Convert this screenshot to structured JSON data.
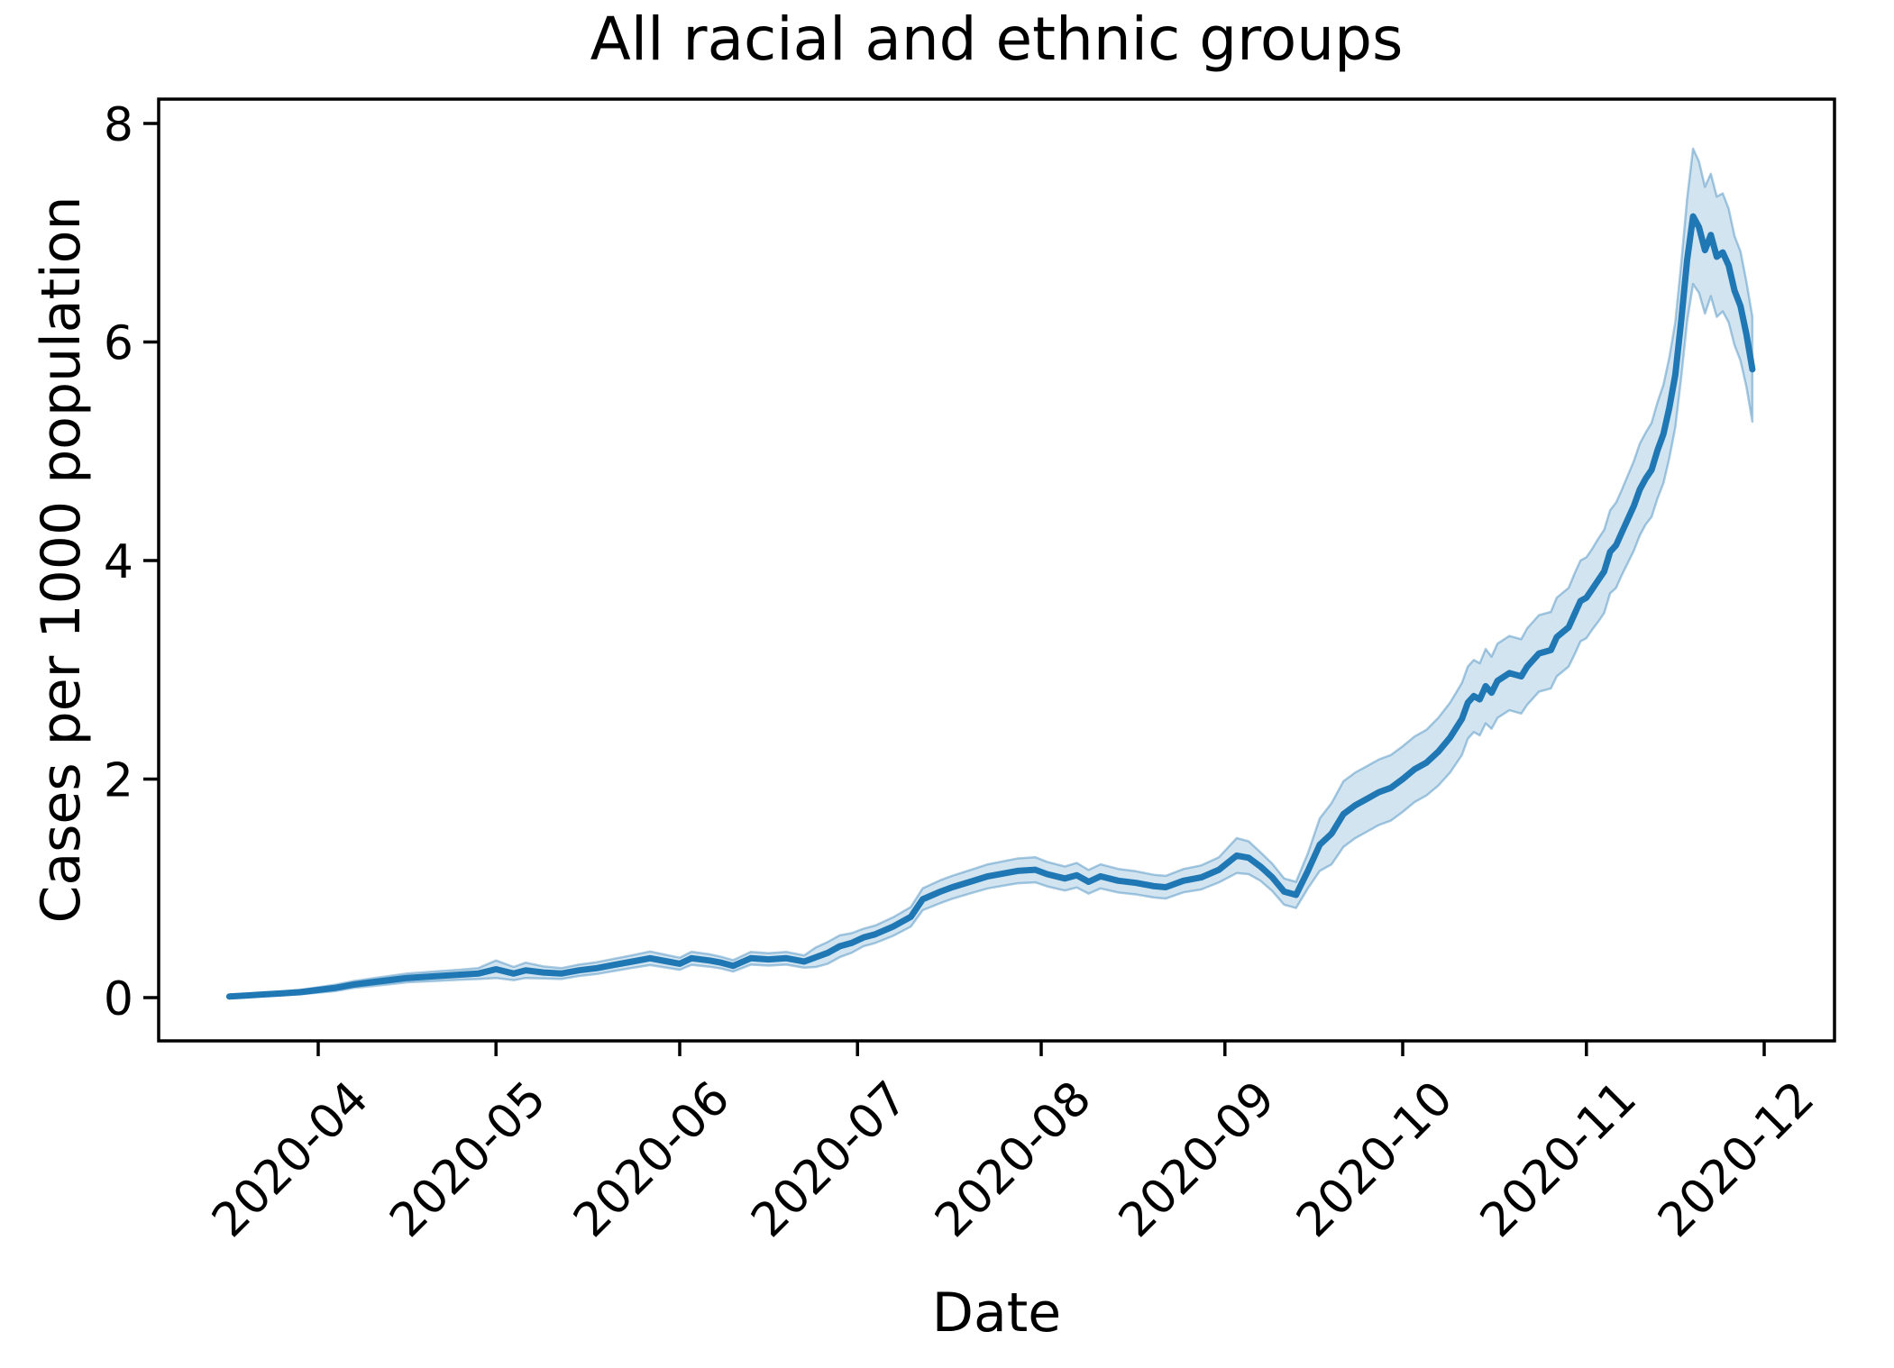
{
  "figure": {
    "title": "All racial and ethnic groups",
    "xlabel": "Date",
    "ylabel": "Cases per 1000 population"
  },
  "chart_data": {
    "type": "line",
    "subtype": "line-with-confidence-band",
    "title": "All racial and ethnic groups",
    "xlabel": "Date",
    "ylabel": "Cases per 1000 population",
    "grid": false,
    "legend": null,
    "x_tick_labels": [
      "2020-04",
      "2020-05",
      "2020-06",
      "2020-07",
      "2020-08",
      "2020-09",
      "2020-10",
      "2020-11",
      "2020-12"
    ],
    "x_tick_rotation_deg": 45,
    "y_tick_labels": [
      "0",
      "2",
      "4",
      "6",
      "8"
    ],
    "y_ticks": [
      0,
      2,
      4,
      6,
      8
    ],
    "ylim": [
      -0.4,
      8.22
    ],
    "xlim": [
      "2020-03-05",
      "2020-12-12"
    ],
    "line_color": "#1f77b4",
    "band_color": "#1f77b4",
    "band_fill_opacity": 0.2,
    "band_edge_opacity": 0.38,
    "series": [
      {
        "name": "All racial and ethnic groups",
        "dates": [
          "2020-03-17",
          "2020-03-20",
          "2020-03-23",
          "2020-03-26",
          "2020-03-29",
          "2020-04-01",
          "2020-04-04",
          "2020-04-07",
          "2020-04-10",
          "2020-04-13",
          "2020-04-16",
          "2020-04-19",
          "2020-04-22",
          "2020-04-25",
          "2020-04-28",
          "2020-05-01",
          "2020-05-04",
          "2020-05-06",
          "2020-05-09",
          "2020-05-12",
          "2020-05-15",
          "2020-05-18",
          "2020-05-21",
          "2020-05-24",
          "2020-05-27",
          "2020-05-30",
          "2020-06-01",
          "2020-06-03",
          "2020-06-06",
          "2020-06-08",
          "2020-06-10",
          "2020-06-13",
          "2020-06-16",
          "2020-06-19",
          "2020-06-22",
          "2020-06-24",
          "2020-06-26",
          "2020-06-28",
          "2020-06-30",
          "2020-07-02",
          "2020-07-04",
          "2020-07-07",
          "2020-07-10",
          "2020-07-12",
          "2020-07-15",
          "2020-07-17",
          "2020-07-20",
          "2020-07-23",
          "2020-07-26",
          "2020-07-28",
          "2020-07-31",
          "2020-08-02",
          "2020-08-05",
          "2020-08-07",
          "2020-08-09",
          "2020-08-11",
          "2020-08-14",
          "2020-08-17",
          "2020-08-20",
          "2020-08-22",
          "2020-08-25",
          "2020-08-28",
          "2020-08-31",
          "2020-09-03",
          "2020-09-05",
          "2020-09-07",
          "2020-09-09",
          "2020-09-11",
          "2020-09-13",
          "2020-09-15",
          "2020-09-17",
          "2020-09-19",
          "2020-09-21",
          "2020-09-23",
          "2020-09-25",
          "2020-09-27",
          "2020-09-29",
          "2020-10-01",
          "2020-10-03",
          "2020-10-05",
          "2020-10-07",
          "2020-10-09",
          "2020-10-11",
          "2020-10-12",
          "2020-10-13",
          "2020-10-14",
          "2020-10-15",
          "2020-10-16",
          "2020-10-17",
          "2020-10-19",
          "2020-10-21",
          "2020-10-22",
          "2020-10-24",
          "2020-10-26",
          "2020-10-27",
          "2020-10-29",
          "2020-10-30",
          "2020-10-31",
          "2020-11-01",
          "2020-11-02",
          "2020-11-03",
          "2020-11-04",
          "2020-11-05",
          "2020-11-06",
          "2020-11-07",
          "2020-11-08",
          "2020-11-09",
          "2020-11-10",
          "2020-11-11",
          "2020-11-12",
          "2020-11-13",
          "2020-11-14",
          "2020-11-15",
          "2020-11-16",
          "2020-11-17",
          "2020-11-18",
          "2020-11-19",
          "2020-11-20",
          "2020-11-21",
          "2020-11-22",
          "2020-11-23",
          "2020-11-24",
          "2020-11-25",
          "2020-11-26",
          "2020-11-27",
          "2020-11-28",
          "2020-11-29"
        ],
        "values": [
          0.01,
          0.02,
          0.03,
          0.04,
          0.05,
          0.07,
          0.09,
          0.12,
          0.14,
          0.16,
          0.18,
          0.19,
          0.2,
          0.21,
          0.22,
          0.26,
          0.22,
          0.25,
          0.23,
          0.22,
          0.25,
          0.27,
          0.3,
          0.33,
          0.36,
          0.33,
          0.31,
          0.36,
          0.34,
          0.32,
          0.29,
          0.36,
          0.35,
          0.36,
          0.33,
          0.37,
          0.41,
          0.47,
          0.5,
          0.55,
          0.58,
          0.65,
          0.74,
          0.9,
          0.97,
          1.01,
          1.06,
          1.11,
          1.14,
          1.16,
          1.17,
          1.13,
          1.09,
          1.12,
          1.06,
          1.11,
          1.07,
          1.05,
          1.02,
          1.01,
          1.07,
          1.1,
          1.17,
          1.3,
          1.28,
          1.2,
          1.1,
          0.97,
          0.94,
          1.16,
          1.4,
          1.5,
          1.68,
          1.76,
          1.82,
          1.88,
          1.92,
          2.0,
          2.09,
          2.15,
          2.25,
          2.38,
          2.55,
          2.7,
          2.76,
          2.73,
          2.85,
          2.79,
          2.9,
          2.97,
          2.94,
          3.03,
          3.15,
          3.18,
          3.3,
          3.39,
          3.51,
          3.63,
          3.66,
          3.74,
          3.82,
          3.9,
          4.08,
          4.14,
          4.26,
          4.38,
          4.5,
          4.65,
          4.75,
          4.83,
          5.01,
          5.16,
          5.4,
          5.7,
          6.2,
          6.75,
          7.15,
          7.05,
          6.84,
          6.98,
          6.78,
          6.82,
          6.7,
          6.47,
          6.33,
          6.07,
          5.75
        ],
        "ci_halfwidth": [
          0.01,
          0.012,
          0.015,
          0.018,
          0.02,
          0.025,
          0.03,
          0.032,
          0.035,
          0.038,
          0.04,
          0.042,
          0.044,
          0.046,
          0.05,
          0.08,
          0.06,
          0.07,
          0.055,
          0.05,
          0.052,
          0.054,
          0.056,
          0.058,
          0.062,
          0.058,
          0.055,
          0.06,
          0.057,
          0.054,
          0.052,
          0.058,
          0.057,
          0.058,
          0.056,
          0.09,
          0.1,
          0.1,
          0.09,
          0.08,
          0.08,
          0.085,
          0.09,
          0.1,
          0.105,
          0.105,
          0.107,
          0.11,
          0.112,
          0.113,
          0.115,
          0.112,
          0.11,
          0.112,
          0.108,
          0.11,
          0.108,
          0.106,
          0.104,
          0.104,
          0.107,
          0.11,
          0.115,
          0.16,
          0.15,
          0.13,
          0.125,
          0.12,
          0.12,
          0.16,
          0.24,
          0.28,
          0.3,
          0.3,
          0.3,
          0.3,
          0.3,
          0.3,
          0.3,
          0.3,
          0.31,
          0.32,
          0.33,
          0.33,
          0.33,
          0.33,
          0.34,
          0.33,
          0.34,
          0.34,
          0.34,
          0.35,
          0.35,
          0.35,
          0.36,
          0.36,
          0.37,
          0.37,
          0.37,
          0.37,
          0.38,
          0.38,
          0.38,
          0.39,
          0.39,
          0.4,
          0.41,
          0.42,
          0.42,
          0.43,
          0.44,
          0.45,
          0.46,
          0.48,
          0.52,
          0.56,
          0.62,
          0.6,
          0.58,
          0.56,
          0.55,
          0.54,
          0.52,
          0.5,
          0.5,
          0.48,
          0.48
        ]
      }
    ]
  }
}
